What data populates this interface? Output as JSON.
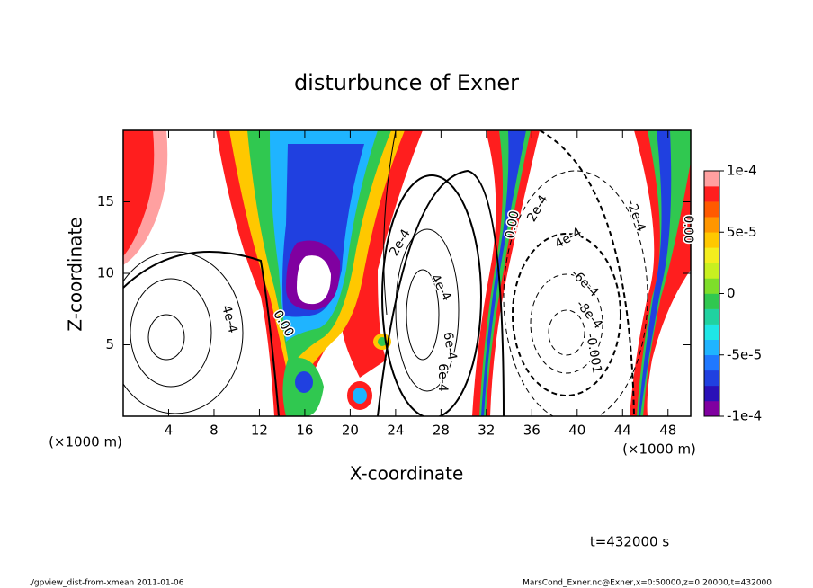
{
  "chart_data": {
    "type": "contour",
    "title": "disturbunce of Exner",
    "x_label": "X-coordinate",
    "y_label": "Z-coordinate",
    "x_unit": "(×1000 m)",
    "y_unit": "(×1000 m)",
    "xlim": [
      0,
      50
    ],
    "ylim": [
      0,
      20
    ],
    "xticks": [
      4,
      8,
      12,
      16,
      20,
      24,
      28,
      32,
      36,
      40,
      44,
      48
    ],
    "yticks": [
      5,
      10,
      15
    ],
    "colorbar": {
      "lim": [
        -0.0001,
        0.0001
      ],
      "ticks": [
        {
          "value": 0.0001,
          "label": "1e-4"
        },
        {
          "value": 5e-05,
          "label": "5e-5"
        },
        0,
        {
          "value": -5e-05,
          "label": "-5e-5"
        },
        {
          "value": -0.0001,
          "label": "-1e-4"
        }
      ],
      "colors": [
        "#8000a0",
        "#2a10b8",
        "#2040e0",
        "#1f78ff",
        "#1fb4ff",
        "#1ee6e6",
        "#20d2a0",
        "#30c850",
        "#7ede2a",
        "#c8f020",
        "#f4ee1e",
        "#ffc800",
        "#ff9600",
        "#ff5a00",
        "#ff1e1e",
        "#ffa0a0"
      ]
    },
    "contour_labels": [
      "4e-4",
      "0.00",
      "2e-4",
      "4e-4",
      "6e-4",
      "0.00",
      "2e-4",
      "4e-4",
      "-6e-4",
      "-8e-4",
      "-0.001",
      "-2e-4",
      "0.00",
      "6e-4"
    ],
    "time_label": "t=432000 s",
    "footer_left": "./gpview_dist-from-xmean  2011-01-06",
    "footer_right": "MarsCond_Exner.nc@Exner,x=0:50000,z=0:20000,t=432000"
  }
}
